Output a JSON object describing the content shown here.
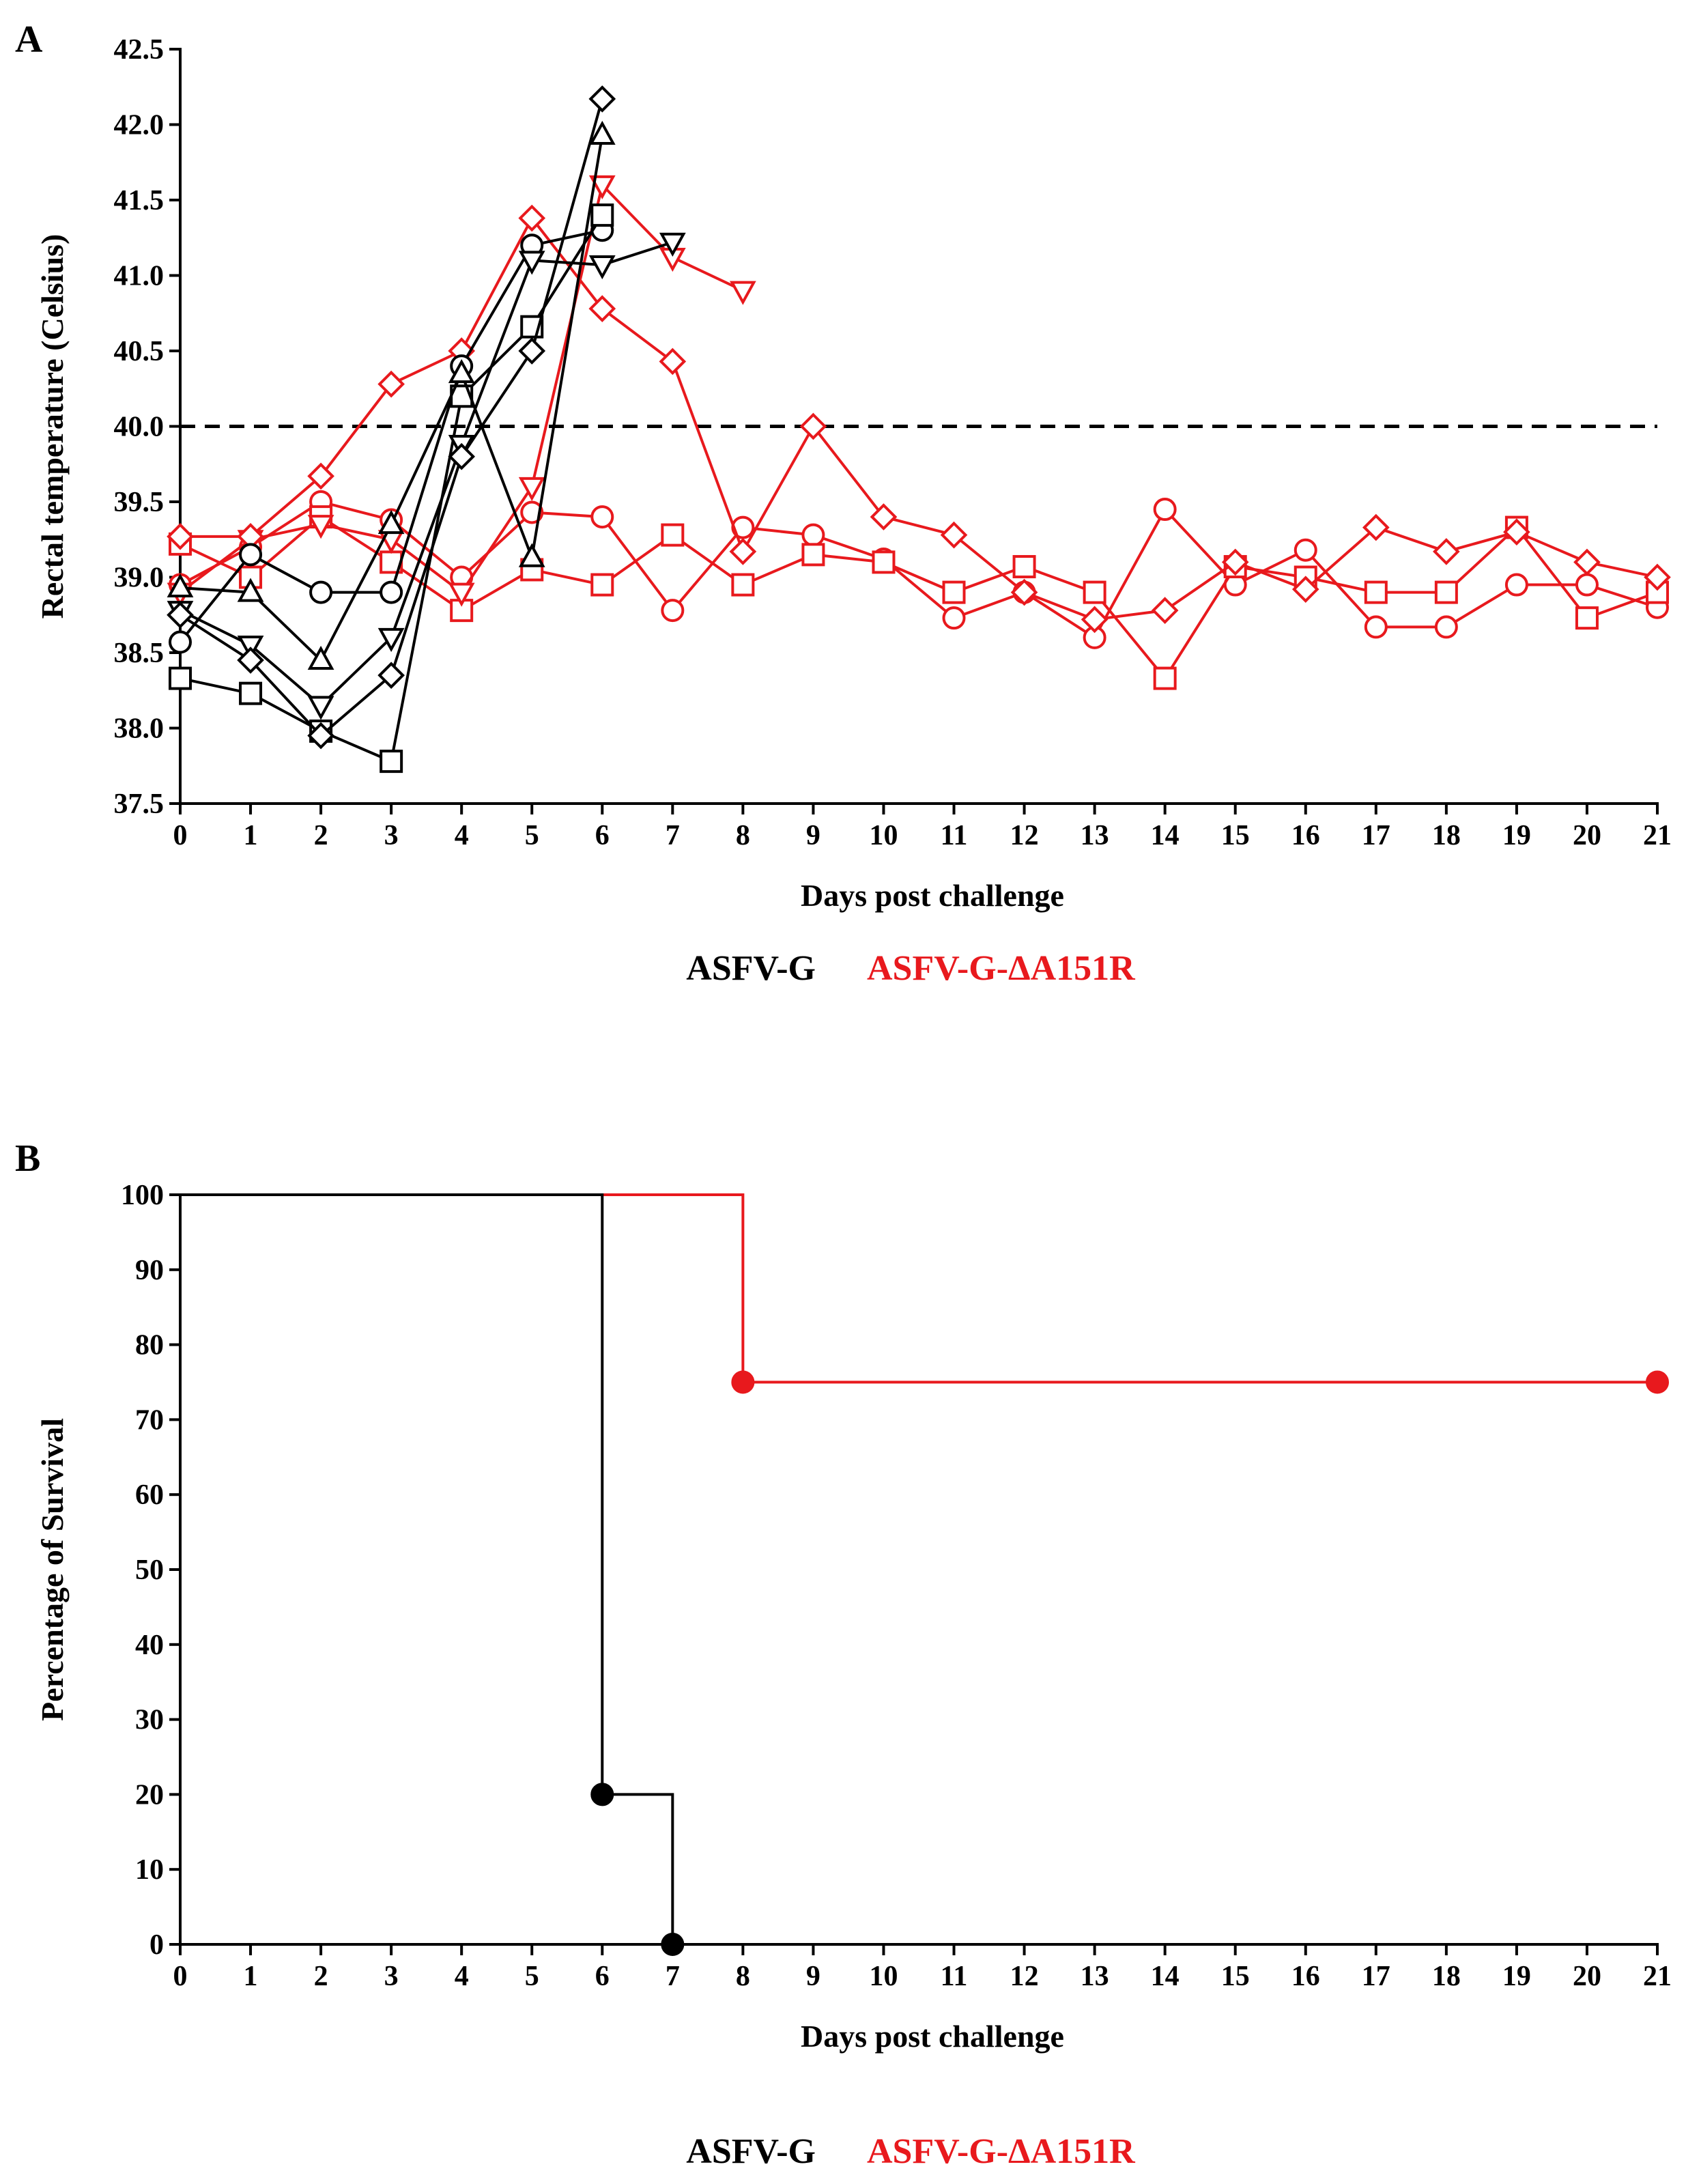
{
  "colors": {
    "ASFV-G": "#000000",
    "ASFV-G-ΔA151R": "#e8191d"
  },
  "chart_data": [
    {
      "panel": "A",
      "type": "line",
      "xlabel": "Days post challenge",
      "ylabel": "Rectal temperature (Celsius)",
      "xlim": [
        0,
        21
      ],
      "ylim": [
        37.5,
        42.5
      ],
      "xticks": [
        "0",
        "1",
        "2",
        "3",
        "4",
        "5",
        "6",
        "7",
        "8",
        "9",
        "10",
        "11",
        "12",
        "13",
        "14",
        "15",
        "16",
        "17",
        "18",
        "19",
        "20",
        "21"
      ],
      "yticks": [
        "37.5",
        "38.0",
        "38.5",
        "39.0",
        "39.5",
        "40.0",
        "40.5",
        "41.0",
        "41.5",
        "42.0",
        "42.5"
      ],
      "reference_line": {
        "y": 40.0,
        "style": "dashed"
      },
      "legend": [
        "ASFV-G",
        "ASFV-G-ΔA151R"
      ],
      "series": [
        {
          "name": "ASFV-G",
          "marker": "circle",
          "x": [
            0,
            1,
            2,
            3,
            4,
            5,
            6
          ],
          "values": [
            38.57,
            39.15,
            38.9,
            38.9,
            40.4,
            41.2,
            41.3
          ]
        },
        {
          "name": "ASFV-G",
          "marker": "square",
          "x": [
            0,
            1,
            2,
            3,
            4,
            5,
            6
          ],
          "values": [
            38.33,
            38.23,
            37.98,
            37.78,
            40.2,
            40.66,
            41.4
          ]
        },
        {
          "name": "ASFV-G",
          "marker": "triangle-up",
          "x": [
            0,
            1,
            2,
            3,
            4,
            5,
            6
          ],
          "values": [
            38.93,
            38.9,
            38.45,
            39.35,
            40.35,
            39.13,
            41.93
          ]
        },
        {
          "name": "ASFV-G",
          "marker": "triangle-down",
          "x": [
            0,
            1,
            2,
            3,
            4,
            5,
            6,
            7
          ],
          "values": [
            38.78,
            38.55,
            38.15,
            38.6,
            39.88,
            41.1,
            41.07,
            41.22
          ]
        },
        {
          "name": "ASFV-G",
          "marker": "diamond",
          "x": [
            0,
            1,
            2,
            3,
            4,
            5,
            6
          ],
          "values": [
            38.75,
            38.45,
            37.95,
            38.35,
            39.8,
            40.5,
            42.17
          ]
        },
        {
          "name": "ASFV-G-ΔA151R",
          "marker": "circle",
          "x": [
            0,
            1,
            2,
            3,
            4,
            5,
            6,
            7,
            8,
            9,
            10,
            11,
            12,
            13,
            14,
            15,
            16,
            17,
            18,
            19,
            20,
            21
          ],
          "values": [
            38.95,
            39.2,
            39.5,
            39.38,
            39.0,
            39.43,
            39.4,
            38.78,
            39.33,
            39.28,
            39.12,
            38.73,
            38.9,
            38.6,
            39.45,
            38.95,
            39.18,
            38.67,
            38.67,
            38.95,
            38.95,
            38.8
          ]
        },
        {
          "name": "ASFV-G-ΔA151R",
          "marker": "square",
          "x": [
            0,
            1,
            2,
            3,
            4,
            5,
            6,
            7,
            8,
            9,
            10,
            11,
            12,
            13,
            14,
            15,
            16,
            17,
            18,
            19,
            20,
            21
          ],
          "values": [
            39.22,
            39.0,
            39.4,
            39.1,
            38.78,
            39.05,
            38.95,
            39.28,
            38.95,
            39.15,
            39.1,
            38.9,
            39.07,
            38.9,
            38.33,
            39.07,
            39.0,
            38.9,
            38.9,
            39.33,
            38.73,
            38.9
          ]
        },
        {
          "name": "ASFV-G-ΔA151R",
          "marker": "triangle-down",
          "x": [
            0,
            1,
            2,
            3,
            4,
            5,
            6,
            7,
            8
          ],
          "values": [
            38.9,
            39.25,
            39.35,
            39.25,
            38.9,
            39.6,
            41.6,
            41.12,
            40.9
          ]
        },
        {
          "name": "ASFV-G-ΔA151R",
          "marker": "diamond",
          "x": [
            0,
            1,
            2,
            3,
            4,
            5,
            6,
            7,
            8,
            9,
            10,
            11,
            12,
            13,
            14,
            15,
            16,
            17,
            18,
            19,
            20,
            21
          ],
          "values": [
            39.27,
            39.27,
            39.67,
            40.28,
            40.5,
            41.38,
            40.78,
            40.43,
            39.17,
            40.0,
            39.4,
            39.28,
            38.9,
            38.72,
            38.78,
            39.1,
            38.92,
            39.33,
            39.17,
            39.3,
            39.1,
            39.0
          ]
        }
      ]
    },
    {
      "panel": "B",
      "type": "line",
      "step": true,
      "xlabel": "Days post challenge",
      "ylabel": "Percentage of Survival",
      "xlim": [
        0,
        21
      ],
      "ylim": [
        0,
        100
      ],
      "xticks": [
        "0",
        "1",
        "2",
        "3",
        "4",
        "5",
        "6",
        "7",
        "8",
        "9",
        "10",
        "11",
        "12",
        "13",
        "14",
        "15",
        "16",
        "17",
        "18",
        "19",
        "20",
        "21"
      ],
      "yticks": [
        "0",
        "10",
        "20",
        "30",
        "40",
        "50",
        "60",
        "70",
        "80",
        "90",
        "100"
      ],
      "legend": [
        "ASFV-G",
        "ASFV-G-ΔA151R"
      ],
      "series": [
        {
          "name": "ASFV-G",
          "x": [
            0,
            6,
            7
          ],
          "values": [
            100,
            20,
            0
          ],
          "markers": [
            [
              6,
              20
            ],
            [
              7,
              0
            ]
          ]
        },
        {
          "name": "ASFV-G-ΔA151R",
          "x": [
            0,
            8,
            21
          ],
          "values": [
            100,
            75,
            75
          ],
          "markers": [
            [
              8,
              75
            ],
            [
              21,
              75
            ]
          ]
        }
      ]
    }
  ]
}
